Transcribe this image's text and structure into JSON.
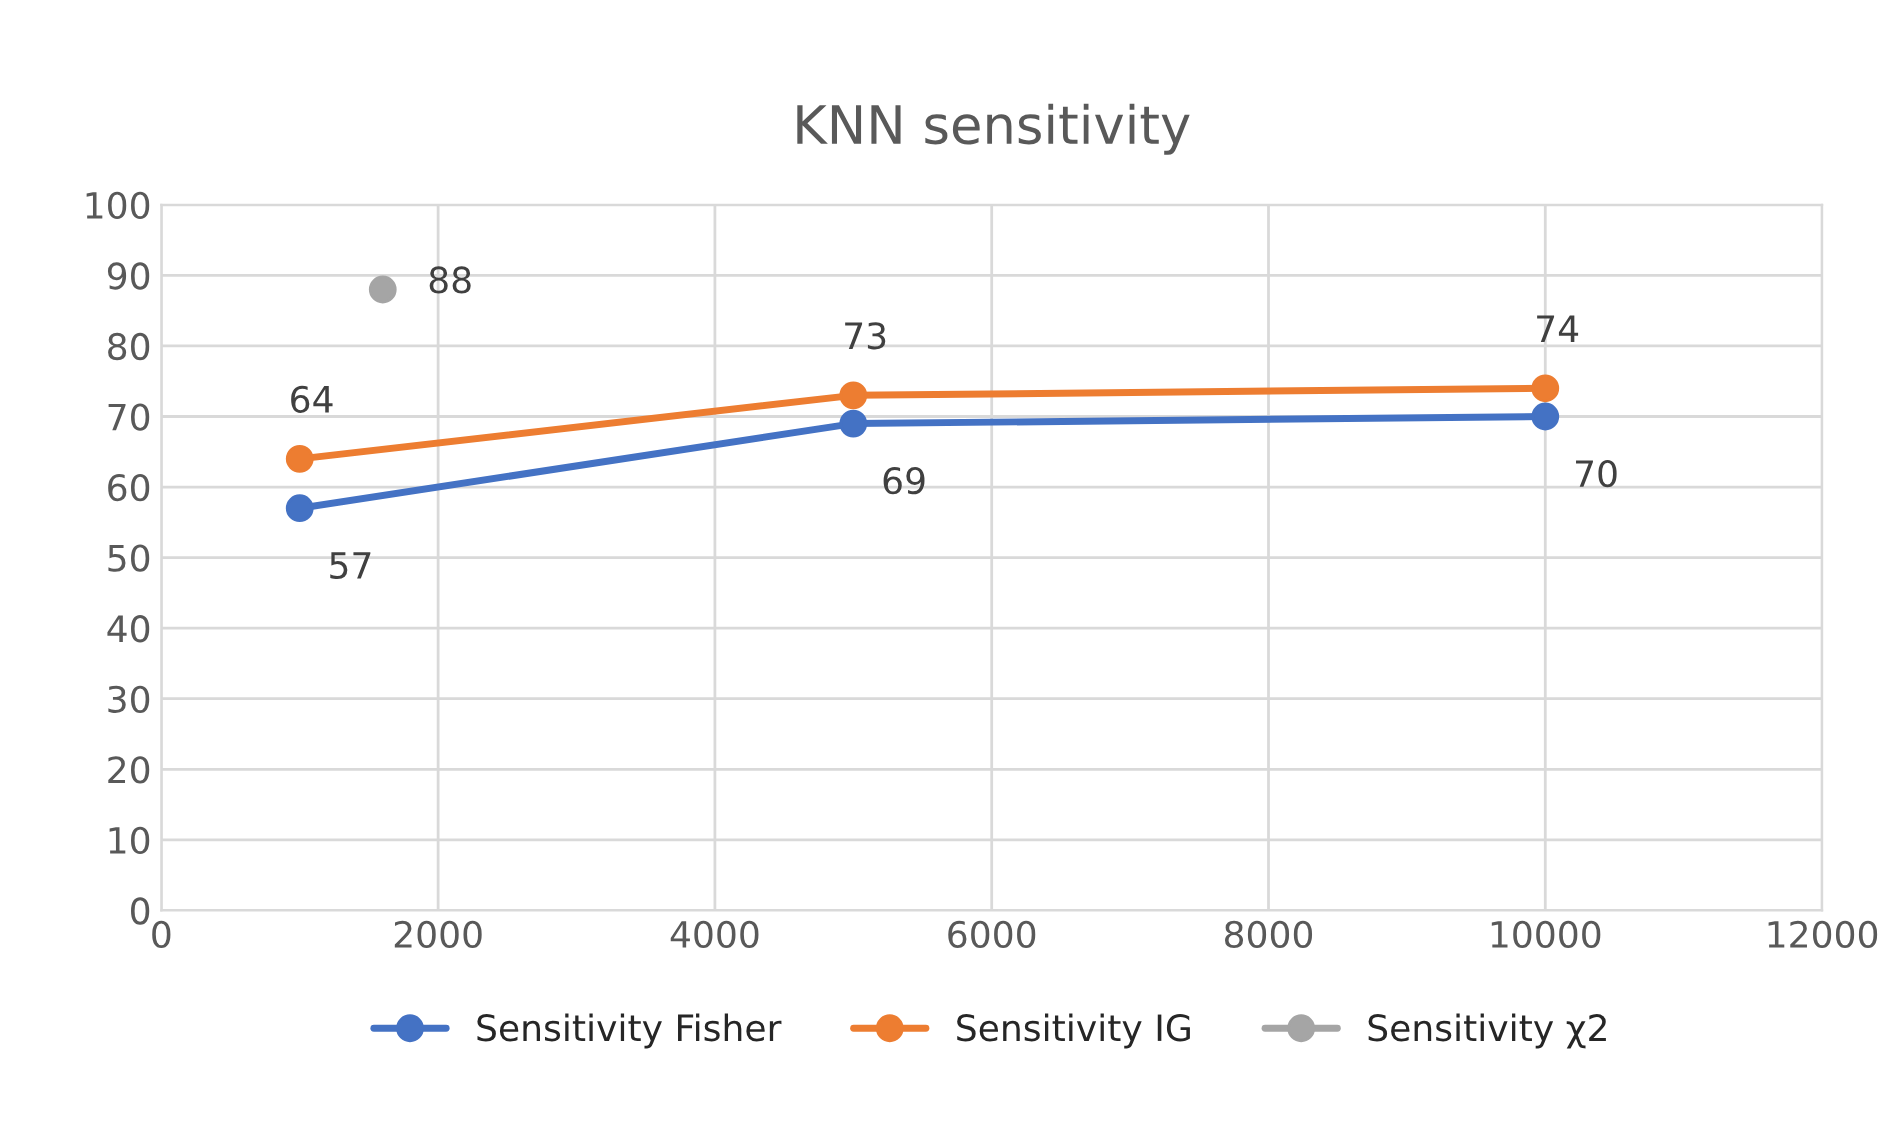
{
  "chart_data": {
    "type": "line",
    "title": "KNN sensitivity",
    "series": [
      {
        "name": "Sensitivity Fisher",
        "color": "#4472c4",
        "x": [
          1000,
          5000,
          10000
        ],
        "values": [
          57,
          69,
          70
        ]
      },
      {
        "name": "Sensitivity IG",
        "color": "#ed7d31",
        "x": [
          1000,
          5000,
          10000
        ],
        "values": [
          64,
          73,
          74
        ]
      },
      {
        "name": "Sensitivity χ2",
        "color": "#a5a5a5",
        "x": [
          1600
        ],
        "values": [
          88
        ]
      }
    ],
    "xlim": [
      0,
      12000
    ],
    "xticks": [
      0,
      2000,
      4000,
      6000,
      8000,
      10000,
      12000
    ],
    "ylim": [
      0,
      100
    ],
    "yticks": [
      0,
      10,
      20,
      30,
      40,
      50,
      60,
      70,
      80,
      90,
      100
    ],
    "grid": true,
    "legend": "bottom",
    "marker": "circle",
    "line_style": "solid",
    "data_labels": true
  }
}
